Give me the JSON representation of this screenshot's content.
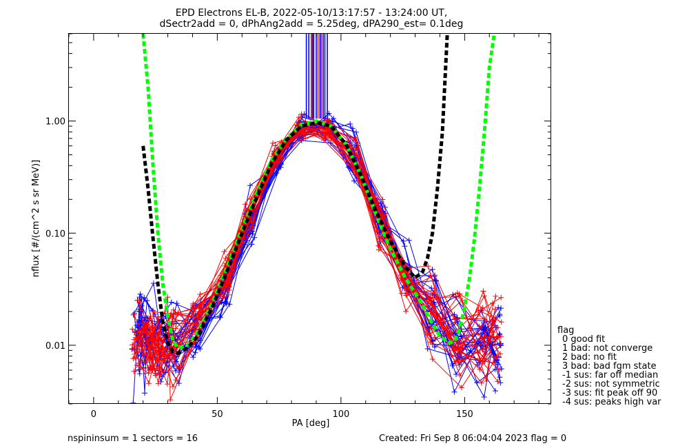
{
  "chart_data": {
    "type": "line",
    "title": "EPD Electrons EL-B, 2022-05-10/13:17:57 - 13:24:00 UT,",
    "subtitle": "dSectr2add = 0, dPhAng2add = 5.25deg, dPA290_est=   0.1deg",
    "xlabel": "PA [deg]",
    "ylabel": "nflux [#/(cm^2 s sr MeV)]",
    "xlim": [
      -10,
      185
    ],
    "ylim": [
      0.003,
      6.0
    ],
    "yscale": "log",
    "xticks": [
      0,
      50,
      100,
      150
    ],
    "xtick_labels": [
      "0",
      "50",
      "100",
      "150"
    ],
    "yticks": [
      0.01,
      0.1,
      1.0
    ],
    "ytick_labels": [
      "0.01",
      "0.10",
      "1.00"
    ],
    "grid": false,
    "series": [
      {
        "color": "#0000ff",
        "role": "sector sweeps",
        "count": 26,
        "x": [
          17.5,
          20,
          23,
          28,
          33,
          42,
          53,
          63,
          74,
          84,
          95,
          105,
          116,
          126,
          137,
          147,
          157,
          163
        ],
        "y": [
          0.012,
          0.013,
          0.012,
          0.011,
          0.011,
          0.014,
          0.03,
          0.12,
          0.45,
          0.85,
          0.9,
          0.5,
          0.13,
          0.045,
          0.02,
          0.012,
          0.011,
          0.011
        ]
      },
      {
        "color": "#ff0000",
        "role": "sector sweeps",
        "count": 24,
        "x": [
          17.5,
          22,
          25,
          28,
          33,
          42,
          53,
          63,
          74,
          84,
          95,
          105,
          116,
          126,
          137,
          147,
          157,
          163
        ],
        "y": [
          0.011,
          0.01,
          0.009,
          0.009,
          0.01,
          0.016,
          0.04,
          0.15,
          0.5,
          0.88,
          0.85,
          0.45,
          0.12,
          0.04,
          0.02,
          0.013,
          0.012,
          0.012
        ]
      },
      {
        "color": "#00ff00",
        "role": "fit",
        "dashed": true,
        "x": [
          20,
          22,
          24,
          26,
          28,
          30,
          32,
          34,
          38,
          42,
          48,
          54,
          60,
          66,
          72,
          78,
          84,
          90,
          96,
          102,
          108,
          114,
          120,
          126,
          132,
          136,
          140,
          144,
          146,
          148,
          150,
          152,
          154,
          156,
          158,
          160,
          162
        ],
        "y": [
          6.0,
          2.0,
          0.4,
          0.1,
          0.035,
          0.018,
          0.011,
          0.0095,
          0.01,
          0.013,
          0.024,
          0.05,
          0.11,
          0.23,
          0.45,
          0.7,
          0.93,
          1.0,
          0.9,
          0.62,
          0.33,
          0.15,
          0.072,
          0.04,
          0.025,
          0.017,
          0.012,
          0.0105,
          0.011,
          0.014,
          0.022,
          0.04,
          0.09,
          0.25,
          0.8,
          3.0,
          6.0
        ]
      },
      {
        "color": "#000000",
        "role": "fit",
        "dashed": true,
        "x": [
          20,
          22,
          24,
          26,
          28,
          30,
          32,
          34,
          38,
          42,
          48,
          54,
          60,
          66,
          72,
          78,
          84,
          90,
          96,
          102,
          108,
          114,
          120,
          126,
          130,
          133,
          135,
          137,
          139,
          141,
          143
        ],
        "y": [
          0.6,
          0.25,
          0.09,
          0.035,
          0.016,
          0.0105,
          0.0088,
          0.0085,
          0.0095,
          0.012,
          0.022,
          0.046,
          0.1,
          0.21,
          0.42,
          0.68,
          0.9,
          0.97,
          0.9,
          0.62,
          0.33,
          0.16,
          0.085,
          0.05,
          0.04,
          0.045,
          0.06,
          0.1,
          0.25,
          0.8,
          6.0
        ]
      }
    ],
    "legend": {
      "position": "right",
      "title": "flag",
      "entries": [
        "0 good fit",
        "1 bad: not converge",
        "2 bad: no fit",
        "3 bad: bad fgm state",
        "-1 sus: far off median",
        "-2 sus: not symmetric",
        "-3 sus: fit peak off 90",
        "-4 sus: peaks high var"
      ]
    }
  },
  "footer": {
    "left": "nspininsum =  1  sectors = 16",
    "right": "Created: Fri Sep  8 06:04:04 2023   flag = 0"
  }
}
